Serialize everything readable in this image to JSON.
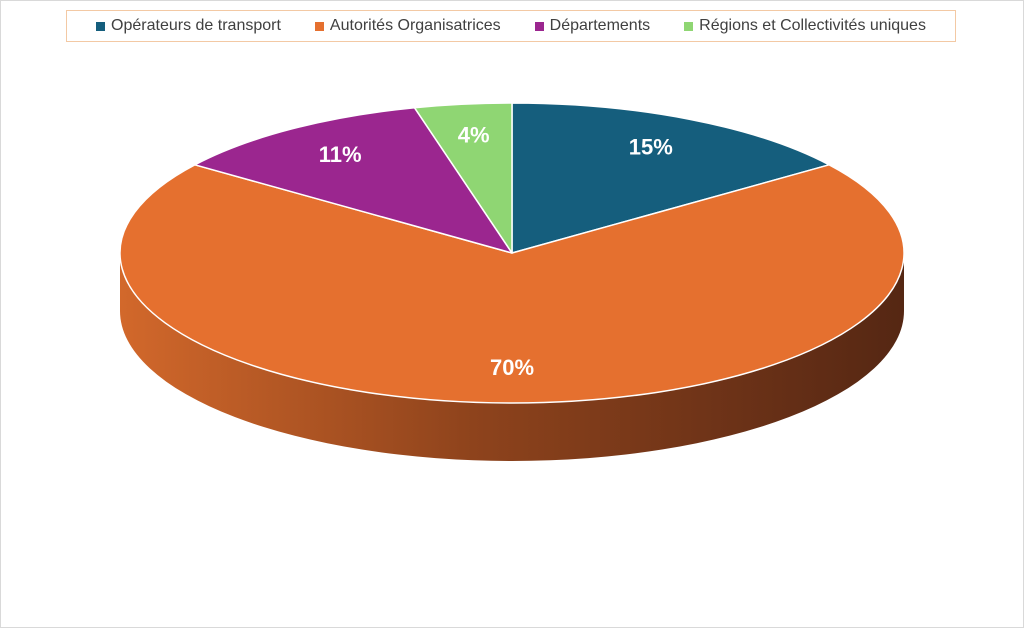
{
  "chart_data": {
    "type": "pie",
    "categories": [
      "Opérateurs de transport",
      "Autorités Organisatrices",
      "Départements",
      "Régions et Collectivités uniques"
    ],
    "values": [
      15,
      70,
      11,
      4
    ],
    "data_labels": [
      "15%",
      "70%",
      "11%",
      "4%"
    ],
    "colors": [
      "#155e7d",
      "#e5702f",
      "#9b268f",
      "#8fd673"
    ],
    "legend": "top",
    "title": ""
  }
}
